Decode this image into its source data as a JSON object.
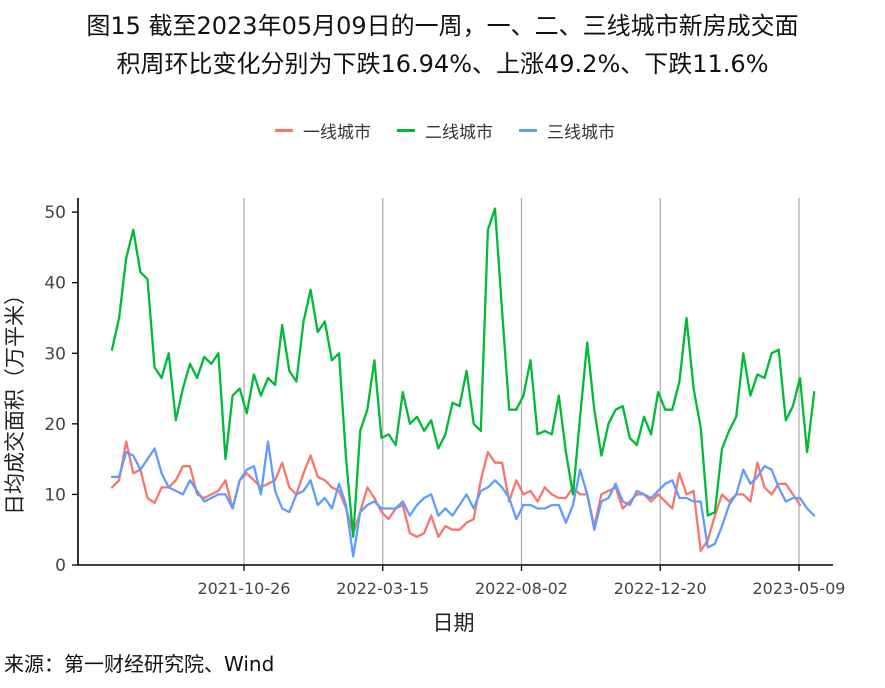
{
  "title_line1": "图15  截至2023年05月09日的一周，一、二、三线城市新房成交面",
  "title_line2": "积周环比变化分别为下跌16.94%、上涨49.2%、下跌11.6%",
  "source": "来源：第一财经研究院、Wind",
  "chart_data": {
    "type": "line",
    "xlabel": "日期",
    "ylabel": "日均成交面积（万平米）",
    "ylim": [
      0,
      52
    ],
    "yticks": [
      0,
      10,
      20,
      30,
      40,
      50
    ],
    "xticks": [
      "2021-10-26",
      "2022-03-15",
      "2022-08-02",
      "2022-12-20",
      "2023-05-09"
    ],
    "legend_position": "top",
    "grid": "vertical",
    "series": [
      {
        "name": "一线城市",
        "color": "#F8766D",
        "values": [
          11.0,
          12.0,
          17.5,
          13.0,
          13.5,
          9.5,
          8.8,
          11.0,
          11.0,
          12.0,
          14.0,
          14.0,
          10.0,
          9.5,
          10.0,
          10.5,
          12.0,
          8.0,
          12.0,
          13.0,
          12.0,
          11.0,
          11.5,
          12.0,
          14.5,
          11.0,
          10.0,
          13.0,
          15.5,
          12.5,
          12.0,
          11.0,
          10.5,
          8.0,
          4.5,
          7.5,
          11.0,
          9.5,
          7.5,
          6.5,
          8.0,
          8.5,
          4.5,
          4.0,
          4.5,
          7.0,
          4.0,
          5.5,
          5.0,
          5.0,
          6.0,
          6.5,
          12.0,
          16.0,
          14.5,
          14.5,
          9.0,
          12.0,
          10.0,
          10.5,
          9.0,
          11.0,
          10.0,
          9.5,
          9.5,
          11.0,
          10.0,
          10.0,
          5.5,
          10.0,
          10.5,
          11.0,
          8.0,
          9.0,
          10.0,
          10.0,
          9.0,
          10.0,
          9.0,
          8.0,
          13.0,
          10.0,
          10.5,
          2.0,
          3.5,
          7.0,
          10.0,
          9.0,
          10.0,
          10.0,
          9.0,
          14.5,
          11.0,
          10.0,
          11.5,
          11.5,
          10.0,
          8.5
        ]
      },
      {
        "name": "二线城市",
        "color": "#00BA38",
        "values": [
          30.5,
          35.0,
          43.5,
          47.5,
          41.5,
          40.5,
          28.0,
          26.5,
          30.0,
          20.5,
          25.0,
          28.5,
          26.5,
          29.5,
          28.5,
          30.0,
          15.0,
          24.0,
          25.0,
          21.5,
          27.0,
          24.0,
          26.5,
          25.5,
          34.0,
          27.5,
          26.0,
          34.5,
          39.0,
          33.0,
          34.5,
          29.0,
          30.0,
          15.0,
          4.0,
          19.0,
          22.0,
          29.0,
          18.0,
          18.5,
          17.0,
          24.5,
          20.0,
          21.0,
          19.0,
          20.5,
          16.5,
          18.5,
          23.0,
          22.5,
          27.5,
          20.0,
          19.0,
          47.5,
          50.5,
          36.0,
          22.0,
          22.0,
          24.0,
          29.0,
          18.5,
          19.0,
          18.5,
          24.0,
          16.0,
          10.0,
          21.0,
          31.5,
          22.0,
          15.5,
          20.0,
          22.0,
          22.5,
          18.0,
          17.0,
          21.0,
          18.5,
          24.5,
          22.0,
          22.0,
          26.0,
          35.0,
          25.0,
          19.5,
          7.0,
          7.5,
          16.5,
          19.0,
          21.0,
          30.0,
          24.0,
          27.0,
          26.5,
          30.0,
          30.5,
          20.5,
          22.5,
          26.5,
          16.0,
          24.5
        ]
      },
      {
        "name": "三线城市",
        "color": "#619CFF",
        "values": [
          12.5,
          12.5,
          16.0,
          15.5,
          13.5,
          15.0,
          16.5,
          13.0,
          11.0,
          10.5,
          10.0,
          12.0,
          10.5,
          9.0,
          9.5,
          10.0,
          10.0,
          8.0,
          12.0,
          13.5,
          14.0,
          10.0,
          17.5,
          10.5,
          8.0,
          7.5,
          10.0,
          10.5,
          12.0,
          8.5,
          9.5,
          8.0,
          11.5,
          8.5,
          1.2,
          7.5,
          8.5,
          9.0,
          8.0,
          8.0,
          8.0,
          9.0,
          7.0,
          8.5,
          9.5,
          10.0,
          7.0,
          8.0,
          7.0,
          8.5,
          10.0,
          8.0,
          10.5,
          11.0,
          12.0,
          11.0,
          9.5,
          6.5,
          8.5,
          8.5,
          8.0,
          8.0,
          8.5,
          8.5,
          6.0,
          8.5,
          13.5,
          10.0,
          5.0,
          9.0,
          9.5,
          11.5,
          9.0,
          8.5,
          10.5,
          10.0,
          9.5,
          10.5,
          11.5,
          12.0,
          9.5,
          9.5,
          9.0,
          9.0,
          2.5,
          3.0,
          5.5,
          8.5,
          10.0,
          13.5,
          11.5,
          12.5,
          14.0,
          13.5,
          11.0,
          9.0,
          9.5,
          9.5,
          8.0,
          7.0
        ]
      }
    ]
  }
}
